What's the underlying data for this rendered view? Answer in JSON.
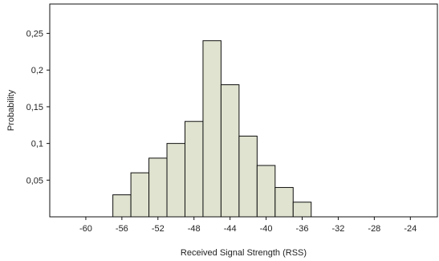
{
  "chart_data": {
    "type": "bar",
    "title": "",
    "xlabel": "Received Signal Strength (RSS)",
    "ylabel": "Probability",
    "categories": [
      "-56",
      "-54",
      "-52",
      "-50",
      "-48",
      "-46",
      "-44",
      "-42",
      "-40",
      "-38",
      "-36",
      "-34",
      "-32",
      "-30",
      "-28",
      "-26",
      "-24"
    ],
    "bins": [
      {
        "start": -57,
        "end": -55,
        "value": 0.03
      },
      {
        "start": -55,
        "end": -53,
        "value": 0.06
      },
      {
        "start": -53,
        "end": -51,
        "value": 0.08
      },
      {
        "start": -51,
        "end": -49,
        "value": 0.1
      },
      {
        "start": -49,
        "end": -47,
        "value": 0.13
      },
      {
        "start": -47,
        "end": -45,
        "value": 0.24
      },
      {
        "start": -45,
        "end": -43,
        "value": 0.18
      },
      {
        "start": -43,
        "end": -41,
        "value": 0.11
      },
      {
        "start": -41,
        "end": -39,
        "value": 0.07
      },
      {
        "start": -39,
        "end": -37,
        "value": 0.04
      },
      {
        "start": -37,
        "end": -35,
        "value": 0.02
      }
    ],
    "xlim": [
      -64,
      -21
    ],
    "ylim": [
      0,
      0.29
    ],
    "xticks": [
      -60,
      -56,
      -52,
      -48,
      -44,
      -40,
      -36,
      -32,
      -28,
      -24
    ],
    "xtick_labels": [
      "-60",
      "-56",
      "-52",
      "-48",
      "-44",
      "-40",
      "-36",
      "-32",
      "-28",
      "-24"
    ],
    "yticks": [
      0.05,
      0.1,
      0.15,
      0.2,
      0.25
    ],
    "ytick_labels": [
      "0,05",
      "0,1",
      "0,15",
      "0,2",
      "0,25"
    ],
    "grid": false,
    "legend": "none",
    "colors": {
      "bar_fill": "#dfe3cf",
      "bar_stroke": "#111111",
      "axis": "#111111"
    }
  }
}
